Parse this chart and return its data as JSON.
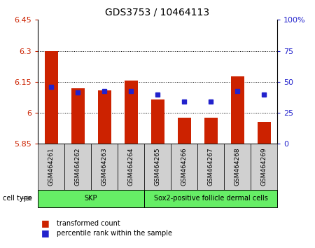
{
  "title": "GDS3753 / 10464113",
  "samples": [
    "GSM464261",
    "GSM464262",
    "GSM464263",
    "GSM464264",
    "GSM464265",
    "GSM464266",
    "GSM464267",
    "GSM464268",
    "GSM464269"
  ],
  "red_values": [
    6.3,
    6.12,
    6.11,
    6.157,
    6.065,
    5.975,
    5.975,
    6.175,
    5.955
  ],
  "blue_values": [
    6.125,
    6.1,
    6.105,
    6.105,
    6.09,
    6.055,
    6.055,
    6.105,
    6.09
  ],
  "ylim_left": [
    5.85,
    6.45
  ],
  "ylim_right": [
    0,
    100
  ],
  "yticks_left": [
    5.85,
    6.0,
    6.15,
    6.3,
    6.45
  ],
  "yticks_right": [
    0,
    25,
    50,
    75,
    100
  ],
  "ytick_labels_left": [
    "5.85",
    "6",
    "6.15",
    "6.3",
    "6.45"
  ],
  "ytick_labels_right": [
    "0",
    "25",
    "50",
    "75",
    "100%"
  ],
  "hlines": [
    6.0,
    6.15,
    6.3
  ],
  "bar_bottom": 5.85,
  "cell_groups": [
    {
      "label": "SKP",
      "start": 0,
      "end": 4
    },
    {
      "label": "Sox2-positive follicle dermal cells",
      "start": 4,
      "end": 9
    }
  ],
  "cell_type_label": "cell type",
  "legend_items": [
    {
      "color": "#cc2200",
      "label": "transformed count"
    },
    {
      "color": "#2222cc",
      "label": "percentile rank within the sample"
    }
  ],
  "bar_color": "#cc2200",
  "blue_color": "#2222cc",
  "cell_group_color": "#66ee66",
  "xtick_bg_color": "#d0d0d0",
  "background_color": "#ffffff",
  "tick_color_left": "#cc2200",
  "tick_color_right": "#2222cc"
}
